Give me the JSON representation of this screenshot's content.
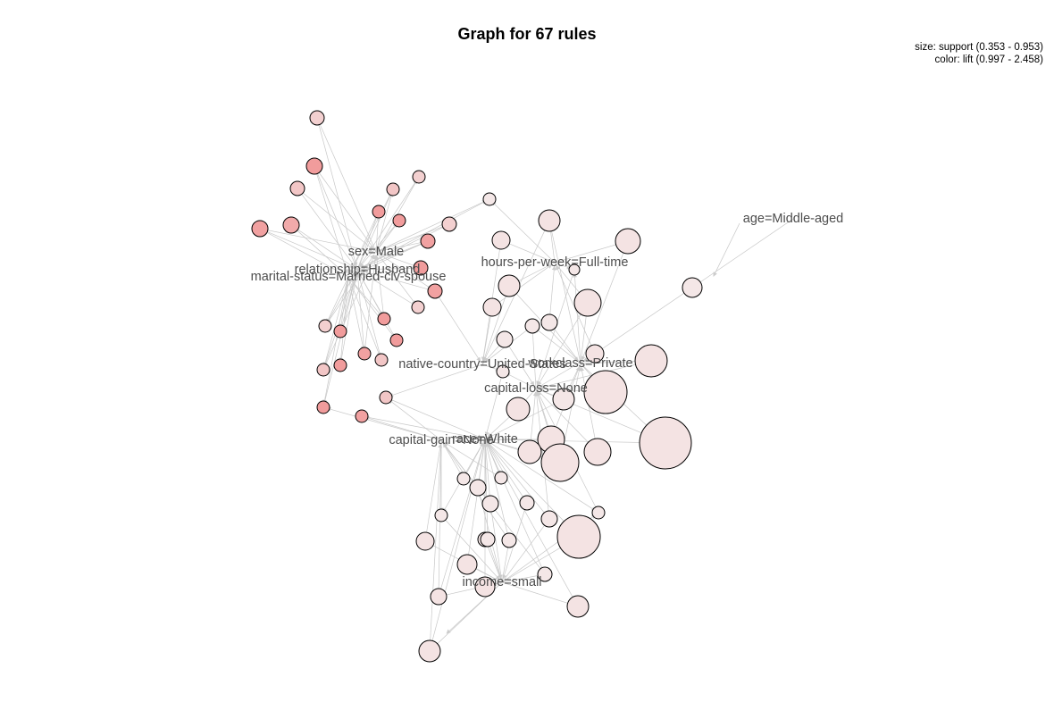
{
  "title": "Graph for 67 rules",
  "legend": {
    "size": "size: support (0.353 - 0.953)",
    "color": "color: lift (0.997 - 2.458)"
  },
  "colors": {
    "node_stroke": "#000000",
    "edge": "#c8c8c8",
    "label": "#4d4d4d",
    "lift_low": "#f4ecec",
    "lift_high": "#f08e8e"
  },
  "items": [
    {
      "id": "age",
      "label": "age=Middle-aged"
    },
    {
      "id": "sex",
      "label": "sex=Male"
    },
    {
      "id": "rel",
      "label": "relationship=Husband"
    },
    {
      "id": "mar",
      "label": "marital-status=Married-civ-spouse"
    },
    {
      "id": "hpw",
      "label": "hours-per-week=Full-time"
    },
    {
      "id": "nat",
      "label": "native-country=United-States"
    },
    {
      "id": "wrk",
      "label": "workclass=Private"
    },
    {
      "id": "cls",
      "label": "capital-loss=None"
    },
    {
      "id": "cgn",
      "label": "capital-gain=None"
    },
    {
      "id": "rac",
      "label": "race=White"
    },
    {
      "id": "inc",
      "label": "income=small"
    }
  ]
}
